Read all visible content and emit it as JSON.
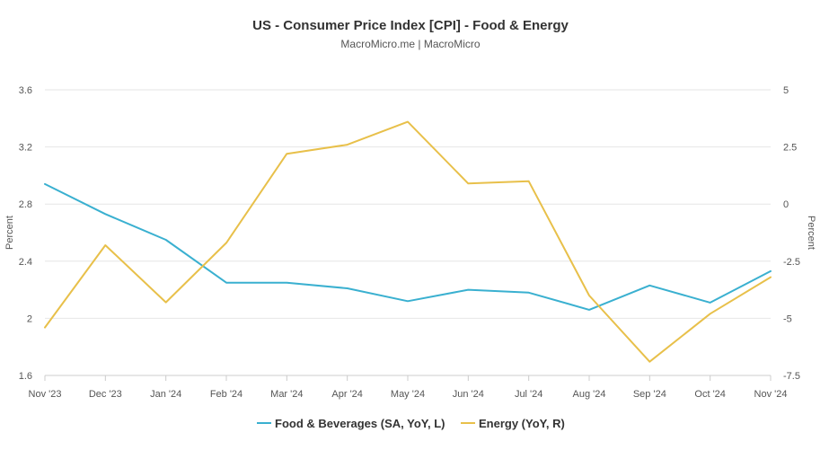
{
  "chart_data": {
    "type": "line",
    "title": "US - Consumer Price Index [CPI] - Food & Energy",
    "subtitle": "MacroMicro.me | MacroMicro",
    "categories": [
      "Nov '23",
      "Dec '23",
      "Jan '24",
      "Feb '24",
      "Mar '24",
      "Apr '24",
      "May '24",
      "Jun '24",
      "Jul '24",
      "Aug '24",
      "Sep '24",
      "Oct '24",
      "Nov '24"
    ],
    "y_left": {
      "label": "Percent",
      "range": [
        1.6,
        3.6
      ],
      "ticks": [
        1.6,
        2.0,
        2.4,
        2.8,
        3.2,
        3.6
      ],
      "tick_labels": [
        "1.6",
        "2",
        "2.4",
        "2.8",
        "3.2",
        "3.6"
      ]
    },
    "y_right": {
      "label": "Percent",
      "range": [
        -7.5,
        5
      ],
      "ticks": [
        -7.5,
        -5,
        -2.5,
        0,
        2.5,
        5
      ],
      "tick_labels": [
        "-7.5",
        "-5",
        "-2.5",
        "0",
        "2.5",
        "5"
      ]
    },
    "series": [
      {
        "name": "Food & Beverages (SA, YoY, L)",
        "axis": "left",
        "color": "#3ab0d0",
        "values": [
          2.94,
          2.73,
          2.55,
          2.25,
          2.25,
          2.21,
          2.12,
          2.2,
          2.18,
          2.06,
          2.23,
          2.11,
          2.33
        ]
      },
      {
        "name": "Energy (YoY, R)",
        "axis": "right",
        "color": "#e8c04a",
        "values": [
          -5.4,
          -1.8,
          -4.3,
          -1.7,
          2.2,
          2.6,
          3.6,
          0.9,
          1.0,
          -4.0,
          -6.9,
          -4.8,
          -3.2
        ]
      }
    ],
    "grid": "horizontal",
    "legend_position": "bottom-center"
  }
}
